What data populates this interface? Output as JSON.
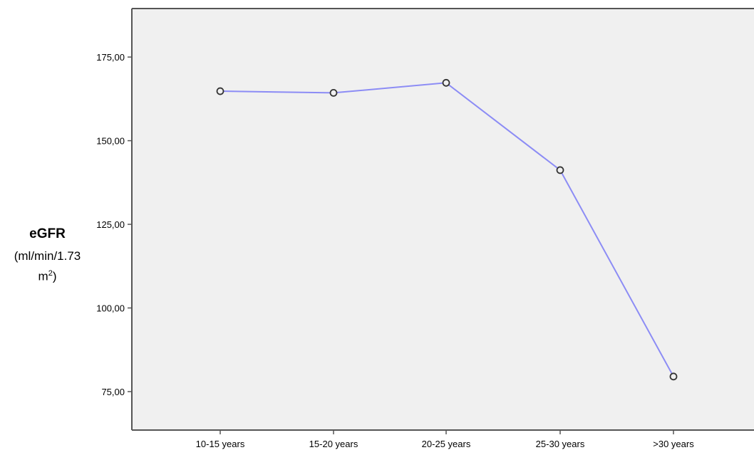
{
  "chart_data": {
    "type": "line",
    "categories": [
      "10-15 years",
      "15-20 years",
      "20-25 years",
      "25-30 years",
      ">30 years"
    ],
    "values": [
      164.8,
      164.3,
      167.3,
      141.2,
      79.5
    ],
    "ylabel_main": "eGFR",
    "ylabel_unit_line1": "(ml/min/1.73",
    "ylabel_unit_line2_base": "m",
    "ylabel_unit_line2_sup": "2",
    "ylabel_unit_line2_end": ")",
    "ylim": [
      63.5,
      189.5
    ],
    "yticks": [
      75,
      100,
      125,
      150,
      175
    ],
    "ytick_labels": [
      "75,00",
      "100,00",
      "125,00",
      "150,00",
      "175,00"
    ],
    "grid": false,
    "colors": {
      "plot_background": "#f0f0f0",
      "line": "#8c8cf5",
      "marker_edge": "#333333",
      "axis": "#555555"
    }
  }
}
